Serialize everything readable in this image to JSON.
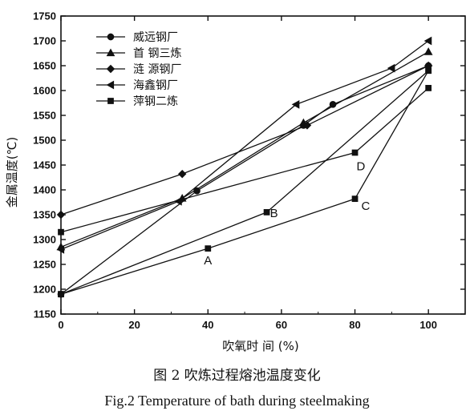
{
  "chart_data": {
    "type": "line",
    "xlabel": "吹氧时  间 (%)",
    "ylabel": "金属温度(℃)",
    "xlim": [
      0,
      110
    ],
    "ylim": [
      1150,
      1750
    ],
    "xticks": [
      0,
      20,
      40,
      60,
      80,
      100
    ],
    "yticks": [
      1150,
      1200,
      1250,
      1300,
      1350,
      1400,
      1450,
      1500,
      1550,
      1600,
      1650,
      1700,
      1750
    ],
    "legend_position": "top-left",
    "grid": false,
    "series": [
      {
        "name": "威远钢厂",
        "marker": "circle",
        "x": [
          0,
          37,
          66,
          74,
          100
        ],
        "y": [
          1190,
          1398,
          1530,
          1572,
          1650
        ]
      },
      {
        "name": "首 钢三炼",
        "marker": "triangle-up",
        "x": [
          0,
          33,
          66,
          100
        ],
        "y": [
          1285,
          1383,
          1535,
          1678
        ]
      },
      {
        "name": "涟 源钢厂",
        "marker": "diamond",
        "x": [
          0,
          33,
          67,
          100
        ],
        "y": [
          1350,
          1432,
          1530,
          1650
        ]
      },
      {
        "name": "海鑫钢厂",
        "marker": "triangle-left",
        "x": [
          0,
          32,
          64,
          90,
          100
        ],
        "y": [
          1280,
          1377,
          1572,
          1645,
          1700
        ]
      },
      {
        "name": "萍钢二炼",
        "marker": "square",
        "x": [
          0,
          40,
          80,
          100
        ],
        "y": [
          1190,
          1282,
          1382,
          1640
        ]
      },
      {
        "name": "",
        "marker": "square",
        "x": [
          0,
          56,
          100
        ],
        "y": [
          1190,
          1355,
          1640
        ]
      },
      {
        "name": "",
        "marker": "square",
        "x": [
          0,
          80,
          100
        ],
        "y": [
          1315,
          1475,
          1605
        ]
      }
    ],
    "annotations": [
      {
        "text": "A",
        "x": 40,
        "y": 1282
      },
      {
        "text": "B",
        "x": 56,
        "y": 1355
      },
      {
        "text": "C",
        "x": 80,
        "y": 1382
      },
      {
        "text": "D",
        "x": 80,
        "y": 1475
      }
    ]
  },
  "caption_cn": "图 2   吹炼过程熔池温度变化",
  "caption_en": "Fig.2 Temperature of bath during steelmaking"
}
